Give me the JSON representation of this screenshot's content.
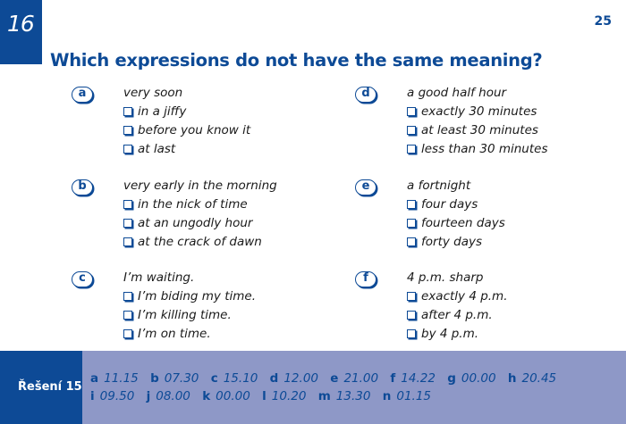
{
  "exercise_number": "16",
  "page_number": "25",
  "title": "Which expressions do not have the same meaning?",
  "groups": [
    {
      "letter": "a",
      "heading": "very soon",
      "options": [
        "in a jiffy",
        "before you know it",
        "at last"
      ]
    },
    {
      "letter": "b",
      "heading": "very early in the morning",
      "options": [
        "in the nick of time",
        "at an ungodly hour",
        "at the crack of dawn"
      ]
    },
    {
      "letter": "c",
      "heading": "I’m waiting.",
      "options": [
        "I’m biding my time.",
        "I’m killing time.",
        "I’m on time."
      ]
    },
    {
      "letter": "d",
      "heading": "a good half hour",
      "options": [
        "exactly 30 minutes",
        "at least 30 minutes",
        "less than 30 minutes"
      ]
    },
    {
      "letter": "e",
      "heading": "a fortnight",
      "options": [
        "four days",
        "fourteen days",
        "forty days"
      ]
    },
    {
      "letter": "f",
      "heading": "4 p.m. sharp",
      "options": [
        "exactly 4 p.m.",
        "after 4 p.m.",
        "by 4 p.m."
      ]
    }
  ],
  "solution": {
    "label": "Řešení 15",
    "answers": [
      {
        "k": "a",
        "v": "11.15"
      },
      {
        "k": "b",
        "v": "07.30"
      },
      {
        "k": "c",
        "v": "15.10"
      },
      {
        "k": "d",
        "v": "12.00"
      },
      {
        "k": "e",
        "v": "21.00"
      },
      {
        "k": "f",
        "v": "14.22"
      },
      {
        "k": "g",
        "v": "00.00"
      },
      {
        "k": "h",
        "v": "20.45"
      },
      {
        "k": "i",
        "v": "09.50"
      },
      {
        "k": "j",
        "v": "08.00"
      },
      {
        "k": "k",
        "v": "00.00"
      },
      {
        "k": "l",
        "v": "10.20"
      },
      {
        "k": "m",
        "v": "13.30"
      },
      {
        "k": "n",
        "v": "01.15"
      }
    ]
  },
  "colors": {
    "accent": "#0d4a96",
    "footer_bg": "#8e98c7"
  }
}
